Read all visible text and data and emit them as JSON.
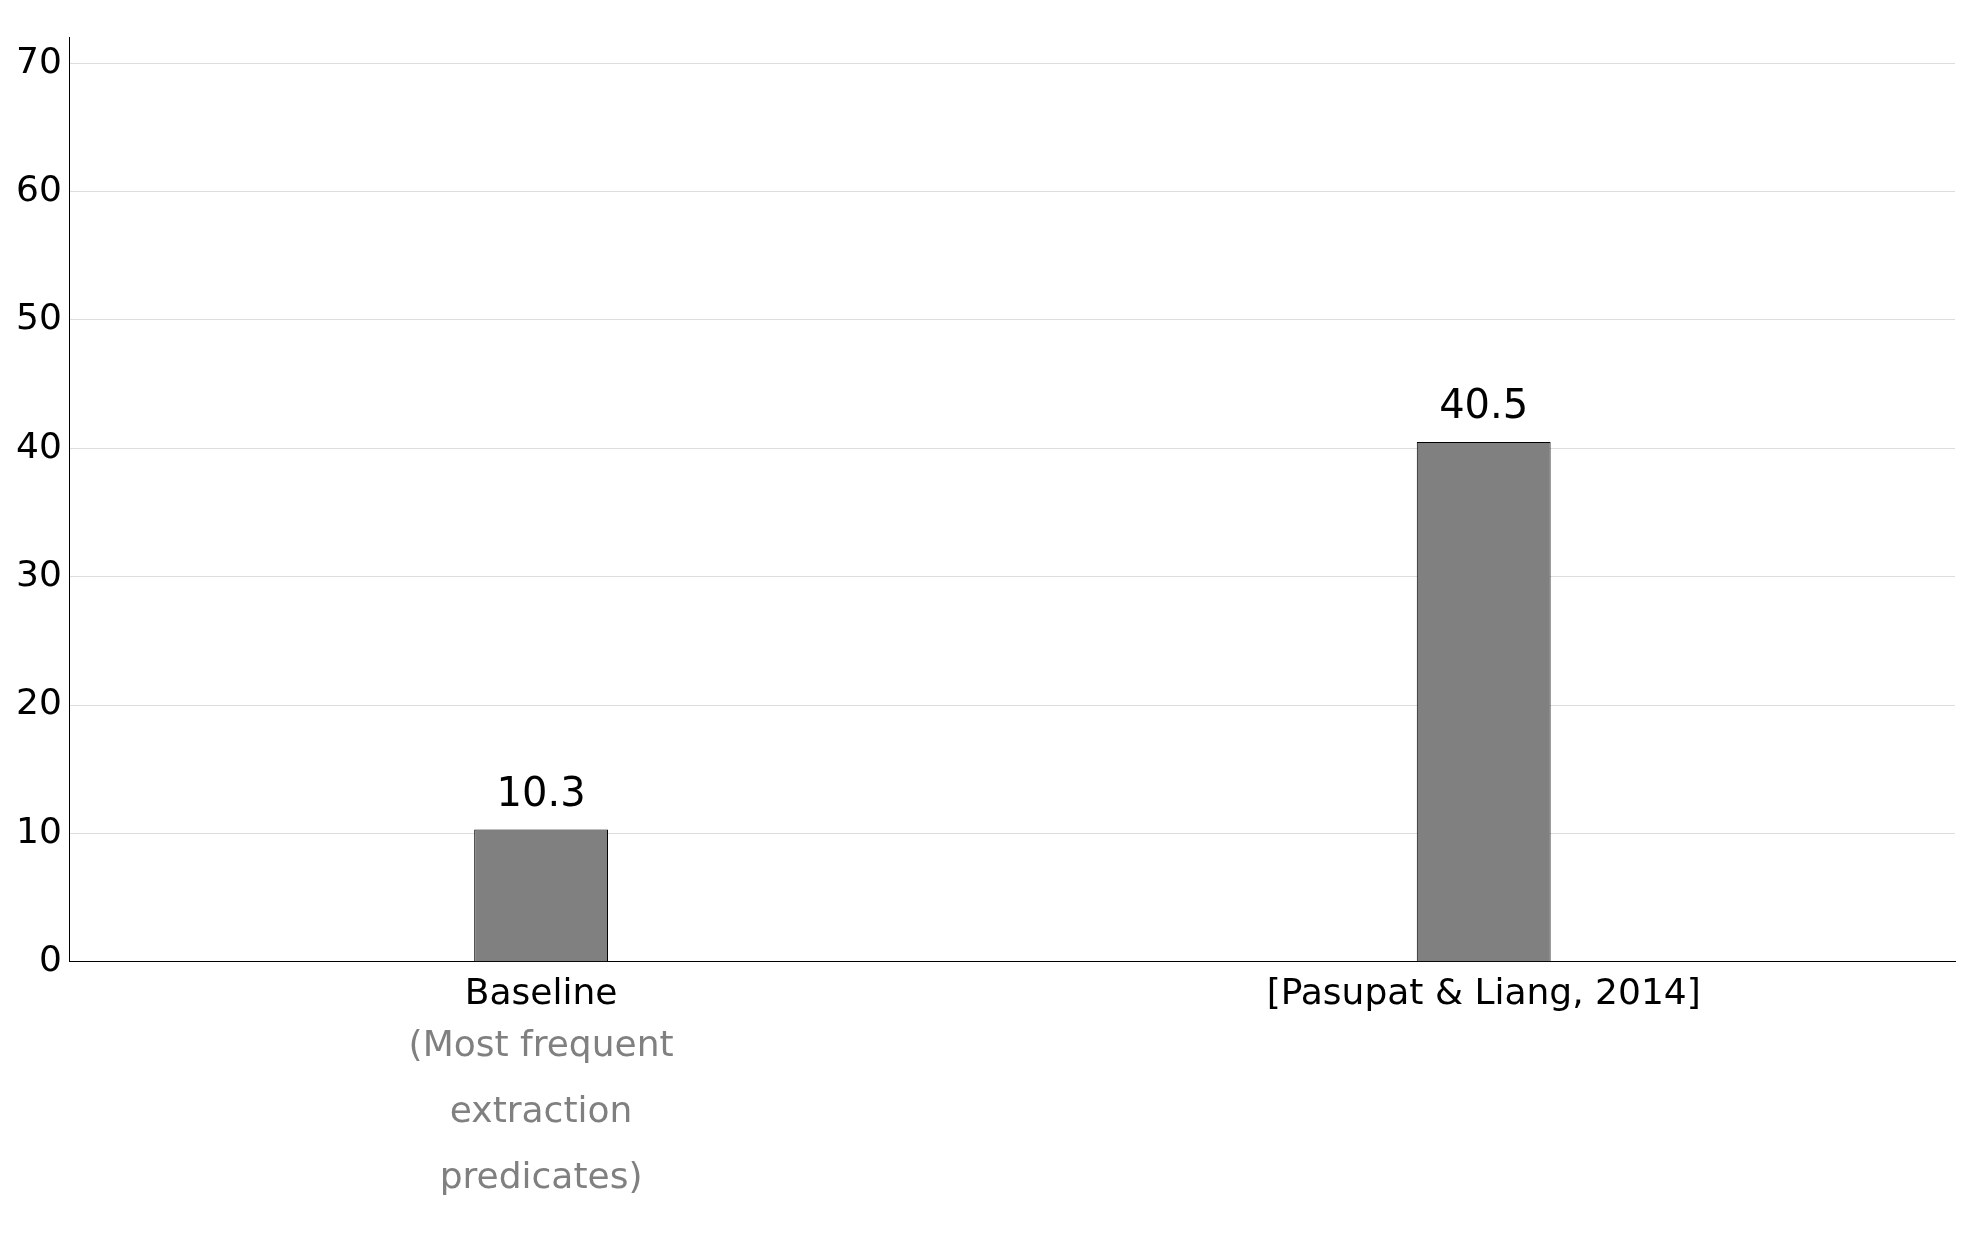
{
  "chart_data": {
    "type": "bar",
    "categories": [
      "Baseline",
      "[Pasupat & Liang, 2014]"
    ],
    "values": [
      10.3,
      40.5
    ],
    "color": "#808080",
    "ylim": [
      0,
      72
    ],
    "yticks": [
      0,
      10,
      20,
      30,
      40,
      50,
      60,
      70
    ],
    "grid": "y",
    "data_labels": true,
    "legend": false,
    "annotations": [
      "(Most frequent extraction predicates)"
    ]
  }
}
